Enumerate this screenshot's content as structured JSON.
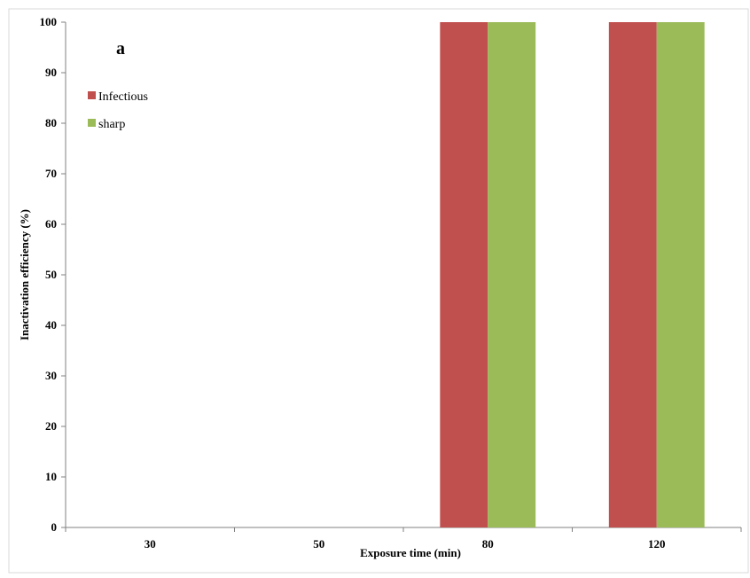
{
  "chart_data": {
    "type": "bar",
    "panel_label": "a",
    "xlabel": "Exposure time (min)",
    "ylabel": "Inactivation efficiency (%)",
    "ylim": [
      0,
      100
    ],
    "yticks": [
      0,
      10,
      20,
      30,
      40,
      50,
      60,
      70,
      80,
      90,
      100
    ],
    "categories": [
      "30",
      "50",
      "80",
      "120"
    ],
    "series": [
      {
        "name": "Infectious",
        "color": "#c0504d",
        "values": [
          0,
          0,
          100,
          100
        ]
      },
      {
        "name": "sharp",
        "color": "#9bbb59",
        "values": [
          0,
          0,
          100,
          100
        ]
      }
    ],
    "legend_position": "top-left",
    "grid": false
  }
}
